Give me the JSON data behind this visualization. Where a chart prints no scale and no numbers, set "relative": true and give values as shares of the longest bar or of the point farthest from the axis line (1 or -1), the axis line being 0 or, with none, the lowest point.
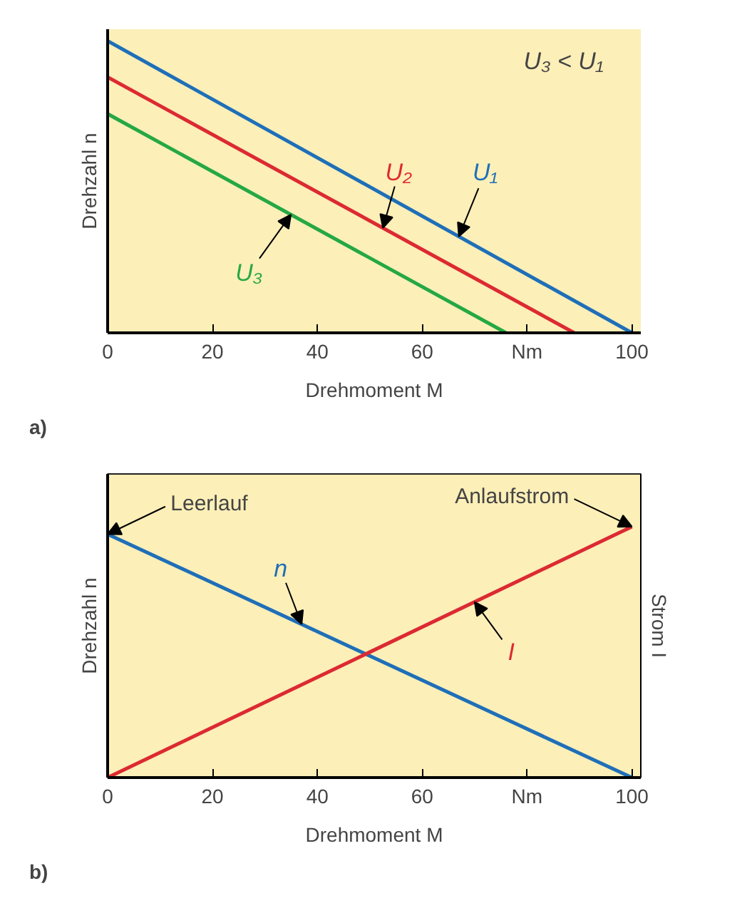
{
  "chart_data": [
    {
      "type": "line",
      "xlabel": "Drehmoment M",
      "ylabel": "Drehzahl n",
      "relative": true,
      "xlim": [
        0,
        101.7
      ],
      "xticks": [
        0,
        20,
        40,
        60,
        {
          "value": 80,
          "label": "Nm"
        },
        100
      ],
      "grid": false,
      "legend": false,
      "annotations": [
        "U₃ < U₁",
        "a)"
      ],
      "series": [
        {
          "name": "U₁",
          "color": "#1f6fb8",
          "x": [
            0,
            100
          ],
          "values": [
            1,
            0
          ]
        },
        {
          "name": "U₂",
          "color": "#dc2a32",
          "x": [
            0,
            89
          ],
          "values": [
            0.876,
            0
          ]
        },
        {
          "name": "U₃",
          "color": "#25a844",
          "x": [
            0,
            76
          ],
          "values": [
            0.75,
            0
          ]
        }
      ]
    },
    {
      "type": "line",
      "xlabel": "Drehmoment M",
      "ylabel": "Drehzahl n",
      "y2label": "Strom I",
      "relative": true,
      "xlim": [
        0,
        101.7
      ],
      "xticks": [
        0,
        20,
        40,
        60,
        {
          "value": 80,
          "label": "Nm"
        },
        100
      ],
      "grid": false,
      "legend": false,
      "annotations": [
        "b)",
        {
          "text": "Leerlauf",
          "x": 0,
          "y": 0.97
        },
        {
          "text": "Anlaufstrom",
          "x": 100,
          "y": 1
        }
      ],
      "series": [
        {
          "name": "n",
          "color": "#1f6fb8",
          "x": [
            0,
            100
          ],
          "values": [
            0.97,
            0
          ]
        },
        {
          "name": "I",
          "color": "#dc2a32",
          "x": [
            0,
            100
          ],
          "values": [
            0,
            1
          ]
        }
      ]
    }
  ]
}
